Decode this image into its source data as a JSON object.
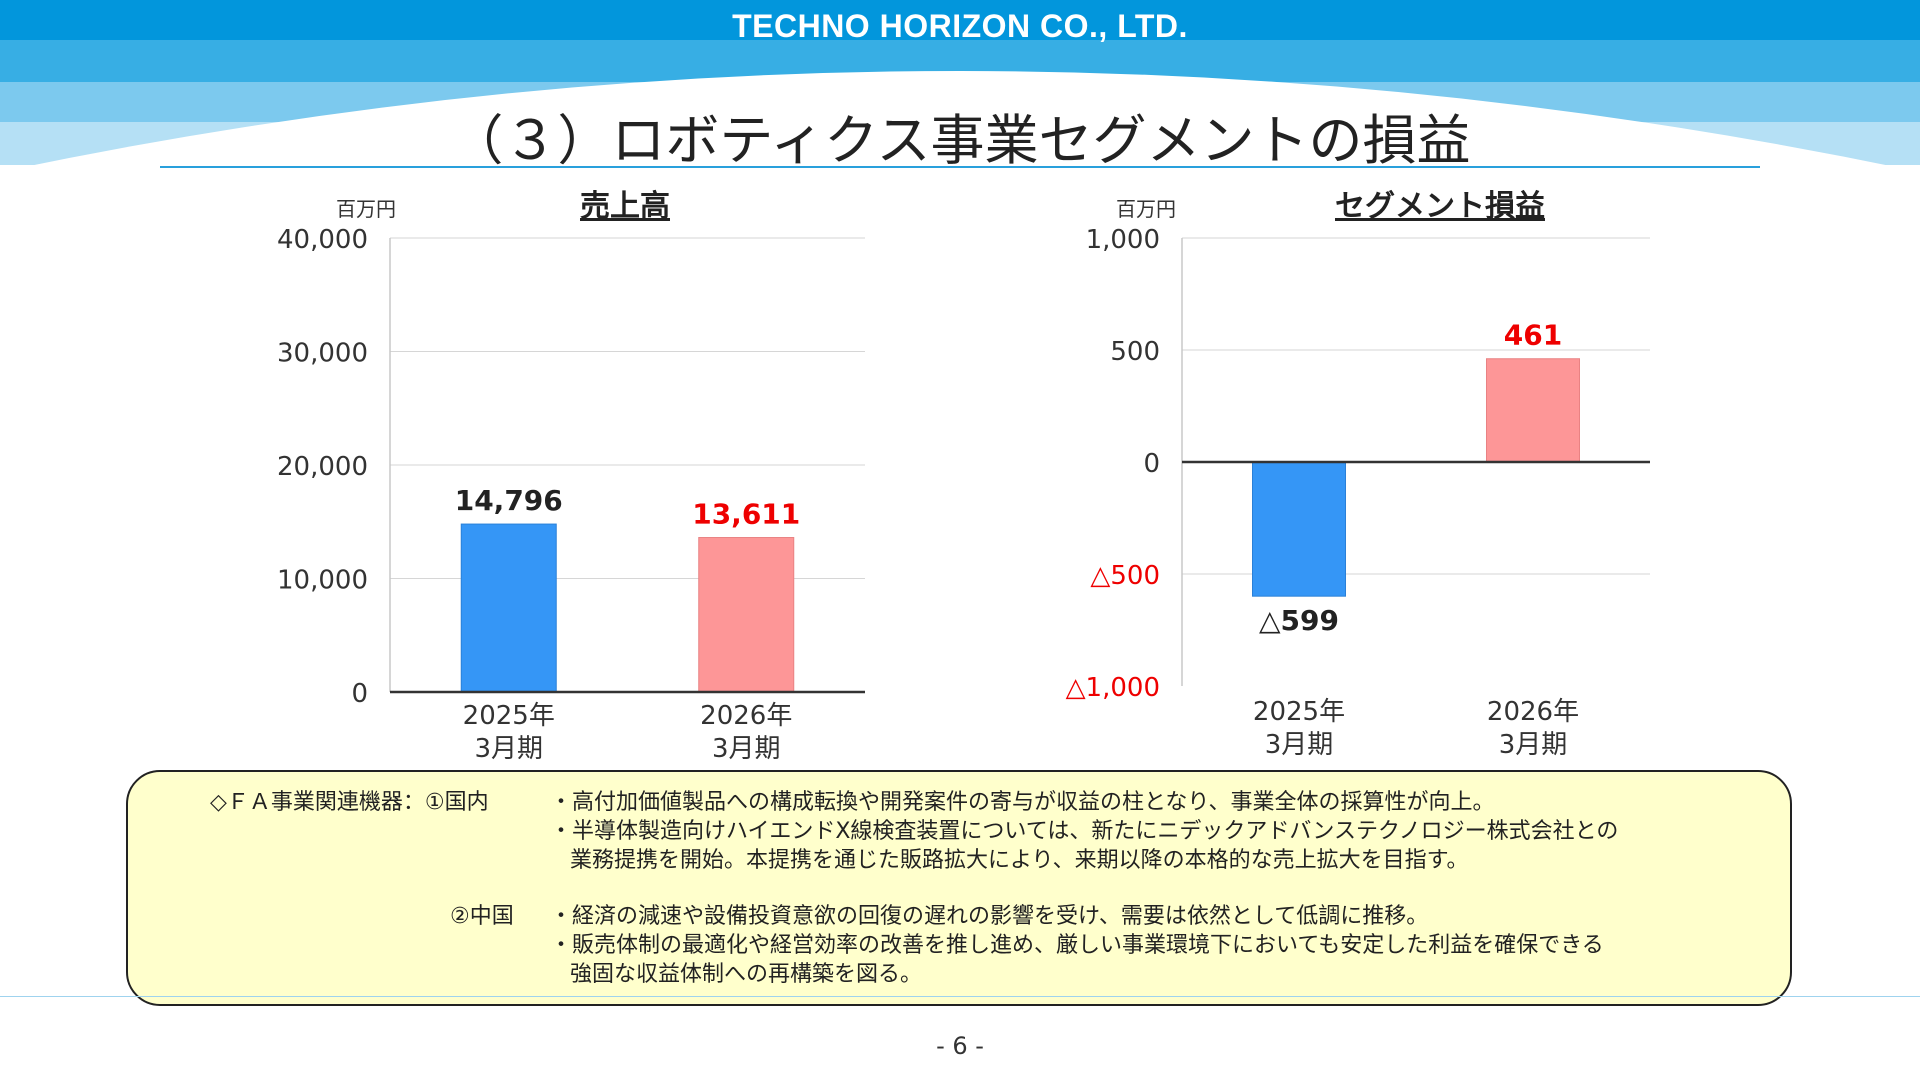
{
  "company": "TECHNO HORIZON CO., LTD.",
  "page_title": "（３）ロボティクス事業セグメントの損益",
  "colors": {
    "header_band_1": "#0296dc",
    "header_band_2": "#37aee4",
    "header_band_3": "#7cc9ee",
    "header_band_4": "#b5e0f5",
    "bar_prev": "#3596f6",
    "bar_curr": "#fd9697",
    "highlight_red": "#ee0000",
    "box_fill": "#ffffcc",
    "rule_blue": "#29a0dc"
  },
  "chart_data": [
    {
      "type": "bar",
      "title": "売上高",
      "unit": "百万円",
      "categories": [
        "2025年\n3月期",
        "2026年\n3月期"
      ],
      "values": [
        14796,
        13611
      ],
      "data_labels": [
        "14,796",
        "13,611"
      ],
      "label_colors": [
        "#222222",
        "#ee0000"
      ],
      "bar_colors": [
        "#3596f6",
        "#fd9697"
      ],
      "ylim": [
        0,
        40000
      ],
      "yticks": [
        0,
        10000,
        20000,
        30000,
        40000
      ],
      "ytick_labels": [
        "0",
        "10,000",
        "20,000",
        "30,000",
        "40,000"
      ],
      "ytick_colors": [
        "#333333",
        "#333333",
        "#333333",
        "#333333",
        "#333333"
      ],
      "grid": true
    },
    {
      "type": "bar",
      "title": "セグメント損益",
      "unit": "百万円",
      "categories": [
        "2025年\n3月期",
        "2026年\n3月期"
      ],
      "values": [
        -599,
        461
      ],
      "data_labels": [
        "△599",
        "461"
      ],
      "label_colors": [
        "#222222",
        "#ee0000"
      ],
      "bar_colors": [
        "#3596f6",
        "#fd9697"
      ],
      "ylim": [
        -1000,
        1000
      ],
      "yticks": [
        -1000,
        -500,
        0,
        500,
        1000
      ],
      "ytick_labels": [
        "△1,000",
        "△500",
        "0",
        "500",
        "1,000"
      ],
      "ytick_colors": [
        "#ee0000",
        "#ee0000",
        "#333333",
        "#333333",
        "#333333"
      ],
      "grid": true
    }
  ],
  "comment": {
    "segment_label": "◇ＦＡ事業関連機器：①国内",
    "domestic": [
      "・高付加価値製品への構成転換や開発案件の寄与が収益の柱となり、事業全体の採算性が向上。",
      "・半導体製造向けハイエンドX線検査装置については、新たにニデックアドバンステクノロジー株式会社との",
      "業務提携を開始。本提携を通じた販路拡大により、来期以降の本格的な売上拡大を目指す。"
    ],
    "china_label": "②中国",
    "china": [
      "・経済の減速や設備投資意欲の回復の遅れの影響を受け、需要は依然として低調に推移。",
      "・販売体制の最適化や経営効率の改善を推し進め、厳しい事業環境下においても安定した利益を確保できる",
      "強固な収益体制への再構築を図る。"
    ]
  },
  "page_number": "- 6 -"
}
